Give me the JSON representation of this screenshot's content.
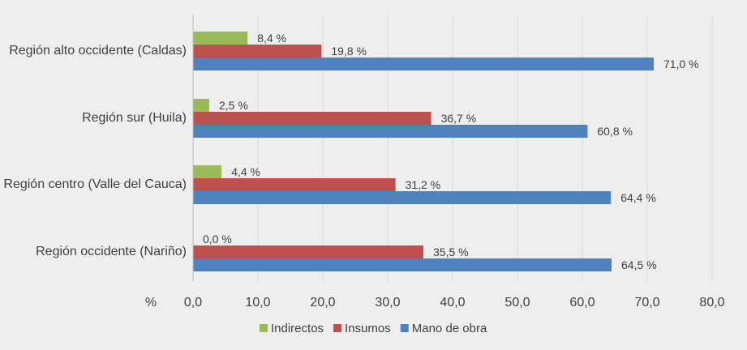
{
  "chart_data": {
    "type": "bar",
    "orientation": "horizontal",
    "title": "",
    "xlabel": "%",
    "ylabel": "",
    "xlim": [
      0,
      80
    ],
    "grid": true,
    "legend_position": "bottom",
    "categories": [
      "Región alto occidente (Caldas)",
      "Región sur (Huila)",
      "Región centro (Valle del Cauca)",
      "Región occidente (Nariño)"
    ],
    "tick_labels": [
      "0,0",
      "10,0",
      "20,0",
      "30,0",
      "40,0",
      "50,0",
      "60,0",
      "70,0",
      "80,0"
    ],
    "series": [
      {
        "name": "Indirectos",
        "color": "#9bbb59",
        "values": [
          8.4,
          2.5,
          4.4,
          0.0
        ],
        "labels": [
          "8,4 %",
          "2,5 %",
          "4,4 %",
          "0,0 %"
        ]
      },
      {
        "name": "Insumos",
        "color": "#c0504d",
        "values": [
          19.8,
          36.7,
          31.2,
          35.5
        ],
        "labels": [
          "19,8 %",
          "36,7 %",
          "31,2 %",
          "35,5 %"
        ]
      },
      {
        "name": "Mano de obra",
        "color": "#4f81bd",
        "values": [
          71.0,
          60.8,
          64.4,
          64.5
        ],
        "labels": [
          "71,0 %",
          "60,8 %",
          "64,4 %",
          "64,5 %"
        ]
      }
    ]
  }
}
